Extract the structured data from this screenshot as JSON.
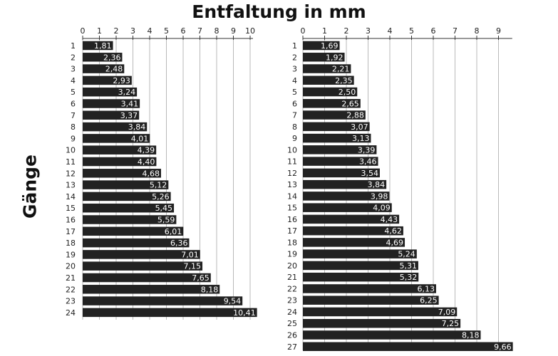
{
  "chart_data": [
    {
      "type": "bar",
      "orientation": "horizontal",
      "title": "Entfaltung in mm",
      "ylabel": "Gänge",
      "xlim": [
        0,
        10
      ],
      "xticks": [
        "0",
        "1",
        "2",
        "3",
        "4",
        "5",
        "6",
        "7",
        "8",
        "9",
        "10"
      ],
      "grid": true,
      "bar_color": "#222222",
      "categories": [
        "1",
        "2",
        "3",
        "4",
        "5",
        "6",
        "7",
        "8",
        "9",
        "10",
        "11",
        "12",
        "13",
        "14",
        "15",
        "16",
        "17",
        "18",
        "19",
        "20",
        "21",
        "22",
        "23",
        "24"
      ],
      "values": [
        1.81,
        2.36,
        2.48,
        2.93,
        3.24,
        3.41,
        3.37,
        3.84,
        4.01,
        4.39,
        4.4,
        4.68,
        5.12,
        5.26,
        5.45,
        5.59,
        6.01,
        6.36,
        7.01,
        7.15,
        7.65,
        8.18,
        9.54,
        10.41
      ],
      "value_labels": [
        "1,81",
        "2,36",
        "2,48",
        "2,93",
        "3,24",
        "3,41",
        "3,37",
        "3,84",
        "4,01",
        "4,39",
        "4,40",
        "4,68",
        "5,12",
        "5,26",
        "5,45",
        "5,59",
        "6,01",
        "6,36",
        "7,01",
        "7,15",
        "7,65",
        "8,18",
        "9,54",
        "10,41"
      ]
    },
    {
      "type": "bar",
      "orientation": "horizontal",
      "xlim": [
        0,
        9.5
      ],
      "xticks": [
        "0",
        "1",
        "2",
        "3",
        "4",
        "5",
        "6",
        "7",
        "8",
        "9"
      ],
      "grid": true,
      "bar_color": "#222222",
      "categories": [
        "1",
        "2",
        "3",
        "4",
        "5",
        "6",
        "7",
        "8",
        "9",
        "10",
        "11",
        "12",
        "13",
        "14",
        "15",
        "16",
        "17",
        "18",
        "19",
        "20",
        "21",
        "22",
        "23",
        "24",
        "25",
        "26",
        "27"
      ],
      "values": [
        1.69,
        1.92,
        2.21,
        2.35,
        2.5,
        2.65,
        2.88,
        3.07,
        3.13,
        3.39,
        3.46,
        3.54,
        3.84,
        3.98,
        4.09,
        4.43,
        4.62,
        4.69,
        5.24,
        5.31,
        5.32,
        6.13,
        6.25,
        7.09,
        7.25,
        8.18,
        9.66
      ],
      "value_labels": [
        "1,69",
        "1,92",
        "2,21",
        "2,35",
        "2,50",
        "2,65",
        "2,88",
        "3,07",
        "3,13",
        "3,39",
        "3,46",
        "3,54",
        "3,84",
        "3,98",
        "4,09",
        "4,43",
        "4,62",
        "4,69",
        "5,24",
        "5,31",
        "5,32",
        "6,13",
        "6,25",
        "7,09",
        "7,25",
        "8,18",
        "9,66"
      ]
    }
  ]
}
